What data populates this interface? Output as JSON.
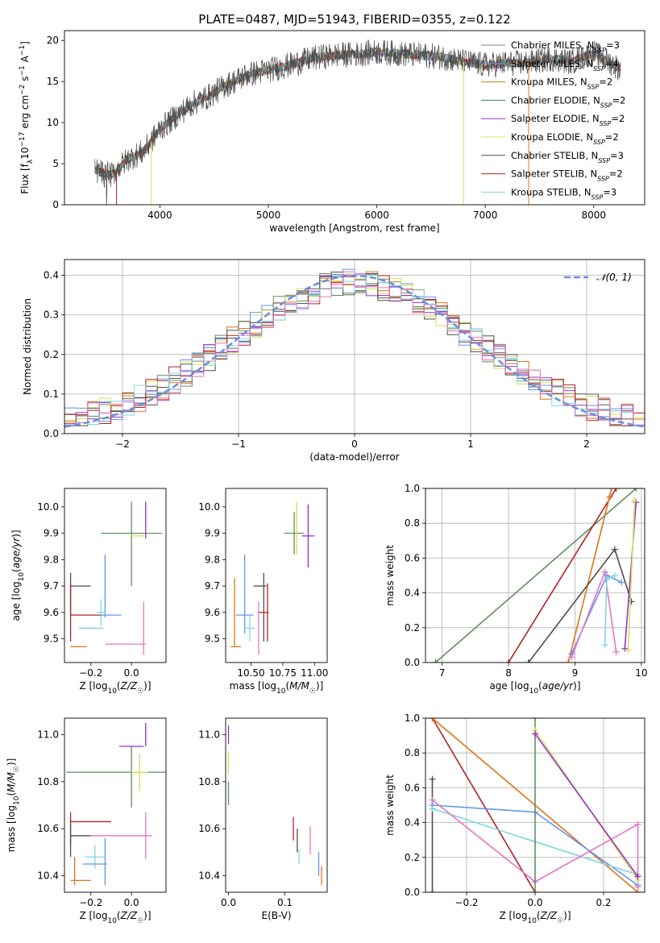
{
  "figure_title": "PLATE=0487, MJD=51943, FIBERID=0355, z=0.122",
  "legend_entries": [
    {
      "label": "Chabrier MILES, N",
      "sub": "SSP",
      "suffix": "=3",
      "color": "#7f7f7f"
    },
    {
      "label": "Salpeter MILES, N",
      "sub": "SSP",
      "suffix": "=4",
      "color": "#6495ed"
    },
    {
      "label": "Kroupa MILES, N",
      "sub": "SSP",
      "suffix": "=2",
      "color": "#b8860b"
    },
    {
      "label": "Chabrier ELODIE, N",
      "sub": "SSP",
      "suffix": "=2",
      "color": "#2e8b57"
    },
    {
      "label": "Salpeter ELODIE, N",
      "sub": "SSP",
      "suffix": "=2",
      "color": "#9932cc"
    },
    {
      "label": "Kroupa ELODIE, N",
      "sub": "SSP",
      "suffix": "=2",
      "color": "#d4e157"
    },
    {
      "label": "Chabrier STELIB, N",
      "sub": "SSP",
      "suffix": "=3",
      "color": "#4d4d4d"
    },
    {
      "label": "Salpeter STELIB, N",
      "sub": "SSP",
      "suffix": "=2",
      "color": "#b22222"
    },
    {
      "label": "Kroupa STELIB, N",
      "sub": "SSP",
      "suffix": "=3",
      "color": "#7fd6e0"
    }
  ],
  "colors": [
    "#4d4d4d",
    "#6495ed",
    "#e0731a",
    "#5f8f5f",
    "#9932cc",
    "#d4e157",
    "#555555",
    "#b22222",
    "#7fd6e0",
    "#e377c2"
  ],
  "chart_data": [
    {
      "id": "spectrum",
      "type": "line",
      "xlabel": "wavelength [Angstrom, rest frame]",
      "ylabel": "Flux [fλ10⁻¹⁷ erg cm⁻² s⁻¹ A⁻¹]",
      "xlim": [
        3120,
        8470
      ],
      "ylim": [
        0,
        21.2
      ],
      "xticks": [
        4000,
        5000,
        6000,
        7000,
        8000
      ],
      "yticks": [
        0,
        5,
        10,
        15,
        20
      ],
      "grid": false,
      "legend": "right",
      "spectrum_nodes": {
        "x": [
          3400,
          3550,
          3700,
          3850,
          4000,
          4150,
          4300,
          4450,
          4600,
          4800,
          5000,
          5200,
          5400,
          5600,
          5800,
          6000,
          6200,
          6400,
          6600,
          6800,
          7000,
          7200,
          7400,
          7600,
          7800,
          8000,
          8250
        ],
        "y": [
          4.2,
          3.6,
          5.5,
          6.5,
          9.2,
          10.8,
          12.3,
          13.2,
          14.5,
          15.8,
          16.4,
          17.0,
          17.8,
          18.2,
          18.3,
          18.6,
          18.4,
          18.2,
          18.0,
          17.4,
          17.0,
          17.2,
          17.3,
          17.8,
          17.4,
          18.5,
          16.5
        ]
      }
    },
    {
      "id": "residuals",
      "type": "histogram",
      "xlabel": "(data-model)/error",
      "ylabel": "Normed distribution",
      "xlim": [
        -2.5,
        2.5
      ],
      "ylim": [
        0,
        0.44
      ],
      "xticks": [
        -2,
        -1,
        0,
        1,
        2
      ],
      "yticks": [
        0.0,
        0.1,
        0.2,
        0.3,
        0.4
      ],
      "grid": true,
      "legend": "top-right",
      "reference": {
        "label": "𝒩(0, 1)",
        "mean": 0,
        "sigma": 1,
        "color": "#6a8fdc"
      }
    },
    {
      "id": "age_vs_Z",
      "type": "scatter",
      "xlabel": "Z [log10(Z/Z☉)]",
      "ylabel": "age  [log10(age/yr)]",
      "xlim": [
        -0.33,
        0.17
      ],
      "ylim": [
        9.41,
        10.07
      ],
      "xticks": [
        -0.2,
        0.0
      ],
      "xticklabels": [
        "−0.2",
        "0.0"
      ],
      "yticks": [
        9.5,
        9.6,
        9.7,
        9.8,
        9.9,
        10.0
      ],
      "points": [
        {
          "x": -0.3,
          "xerr": 0.0,
          "y": 9.67,
          "yerr": 0.08,
          "color": "#4d4d4d"
        },
        {
          "x": -0.13,
          "xerr": 0.0,
          "y": 9.7,
          "yerr": 0.12,
          "color": "#6495ed"
        },
        {
          "x": -0.26,
          "xerr": 0.04,
          "y": 9.47,
          "yerr": 0.0,
          "color": "#e0731a"
        },
        {
          "x": 0.0,
          "xerr": 0.0,
          "y": 9.86,
          "yerr": 0.16,
          "color": "#5f8f5f"
        },
        {
          "x": 0.0,
          "xerr": 0.15,
          "y": 9.9,
          "yerr": 0.0,
          "color": "#5f8f5f"
        },
        {
          "x": 0.07,
          "xerr": 0.0,
          "y": 9.95,
          "yerr": 0.07,
          "color": "#9932cc"
        },
        {
          "x": 0.03,
          "xerr": 0.03,
          "y": 9.89,
          "yerr": 0.0,
          "color": "#d4e157"
        },
        {
          "x": -0.25,
          "xerr": 0.05,
          "y": 9.7,
          "yerr": 0.0,
          "color": "#4d4d4d"
        },
        {
          "x": -0.3,
          "xerr": 0.0,
          "y": 9.6,
          "yerr": 0.11,
          "color": "#b22222"
        },
        {
          "x": -0.22,
          "xerr": 0.08,
          "y": 9.59,
          "yerr": 0.0,
          "color": "#b22222"
        },
        {
          "x": -0.15,
          "xerr": 0.02,
          "y": 9.6,
          "yerr": 0.05,
          "color": "#7fd6e0"
        },
        {
          "x": -0.2,
          "xerr": 0.06,
          "y": 9.54,
          "yerr": 0.0,
          "color": "#7fd6e0"
        },
        {
          "x": -0.1,
          "xerr": 0.05,
          "y": 9.59,
          "yerr": 0.0,
          "color": "#6495ed"
        },
        {
          "x": 0.06,
          "xerr": 0.0,
          "y": 9.54,
          "yerr": 0.1,
          "color": "#e377c2"
        },
        {
          "x": -0.03,
          "xerr": 0.1,
          "y": 9.48,
          "yerr": 0.0,
          "color": "#e377c2"
        }
      ]
    },
    {
      "id": "age_vs_mass",
      "type": "scatter",
      "xlabel": "mass [log10(M/M☉)]",
      "ylabel": "",
      "xlim": [
        10.3,
        11.1
      ],
      "ylim": [
        9.41,
        10.07
      ],
      "xticks": [
        10.5,
        10.75,
        11.0
      ],
      "xticklabels": [
        "10.50",
        "10.75",
        "11.00"
      ],
      "yticks": [
        9.5,
        9.6,
        9.7,
        9.8,
        9.9,
        10.0
      ],
      "points": [
        {
          "x": 10.37,
          "xerr": 0.0,
          "y": 9.6,
          "yerr": 0.13,
          "color": "#e0731a"
        },
        {
          "x": 10.38,
          "xerr": 0.04,
          "y": 9.47,
          "yerr": 0.0,
          "color": "#e0731a"
        },
        {
          "x": 10.45,
          "xerr": 0.0,
          "y": 9.67,
          "yerr": 0.15,
          "color": "#6495ed"
        },
        {
          "x": 10.45,
          "xerr": 0.07,
          "y": 9.59,
          "yerr": 0.0,
          "color": "#6495ed"
        },
        {
          "x": 10.49,
          "xerr": 0.04,
          "y": 9.54,
          "yerr": 0.05,
          "color": "#7fd6e0"
        },
        {
          "x": 10.57,
          "xerr": 0.05,
          "y": 9.7,
          "yerr": 0.0,
          "color": "#4d4d4d"
        },
        {
          "x": 10.6,
          "xerr": 0.0,
          "y": 9.62,
          "yerr": 0.13,
          "color": "#4d4d4d"
        },
        {
          "x": 10.63,
          "xerr": 0.0,
          "y": 9.6,
          "yerr": 0.11,
          "color": "#b22222"
        },
        {
          "x": 10.6,
          "xerr": 0.04,
          "y": 9.6,
          "yerr": 0.0,
          "color": "#b22222"
        },
        {
          "x": 10.56,
          "xerr": 0.0,
          "y": 9.54,
          "yerr": 0.1,
          "color": "#e377c2"
        },
        {
          "x": 10.84,
          "xerr": 0.08,
          "y": 9.9,
          "yerr": 0.08,
          "color": "#5f8f5f"
        },
        {
          "x": 10.86,
          "xerr": 0.0,
          "y": 9.92,
          "yerr": 0.1,
          "color": "#d4e157"
        },
        {
          "x": 10.95,
          "xerr": 0.05,
          "y": 9.89,
          "yerr": 0.12,
          "color": "#9932cc"
        }
      ]
    },
    {
      "id": "massweight_vs_age",
      "type": "line",
      "xlabel": "age  [log10(age/yr)]",
      "ylabel": "mass weight",
      "xlim": [
        6.75,
        10.05
      ],
      "ylim": [
        0,
        1
      ],
      "xticks": [
        7,
        8,
        9,
        10
      ],
      "yticks": [
        0.0,
        0.2,
        0.4,
        0.6,
        0.8,
        1.0
      ],
      "grid": true,
      "series": [
        {
          "color": "#5f8f5f",
          "x": [
            6.9,
            9.92
          ],
          "y": [
            0.0,
            1.0
          ]
        },
        {
          "color": "#b22222",
          "x": [
            8.0,
            9.62
          ],
          "y": [
            0.0,
            1.0
          ]
        },
        {
          "color": "#e0731a",
          "x": [
            8.9,
            9.52,
            9.55
          ],
          "y": [
            0.0,
            0.95,
            1.0
          ]
        },
        {
          "color": "#4d4d4d",
          "x": [
            8.3,
            9.6,
            9.85
          ],
          "y": [
            0.0,
            0.65,
            0.35
          ]
        },
        {
          "color": "#6495ed",
          "x": [
            8.95,
            9.48,
            9.7
          ],
          "y": [
            0.05,
            0.5,
            0.46
          ]
        },
        {
          "color": "#e377c2",
          "x": [
            8.95,
            9.45,
            9.62
          ],
          "y": [
            0.03,
            0.52,
            0.06
          ]
        },
        {
          "color": "#7fd6e0",
          "x": [
            9.45,
            9.48,
            9.6
          ],
          "y": [
            0.1,
            0.48,
            0.5
          ]
        },
        {
          "color": "#9932cc",
          "x": [
            9.75,
            9.92
          ],
          "y": [
            0.08,
            0.92
          ]
        },
        {
          "color": "#d4e157",
          "x": [
            9.8,
            9.9
          ],
          "y": [
            0.07,
            0.93
          ]
        }
      ]
    },
    {
      "id": "mass_vs_Z",
      "type": "scatter",
      "xlabel": "Z [log10(Z/Z☉)]",
      "ylabel": "mass [log10(M/M☉)]",
      "xlim": [
        -0.33,
        0.17
      ],
      "ylim": [
        10.33,
        11.07
      ],
      "xticks": [
        -0.2,
        0.0
      ],
      "xticklabels": [
        "−0.2",
        "0.0"
      ],
      "yticks": [
        10.4,
        10.6,
        10.8,
        11.0
      ],
      "points": [
        {
          "x": 0.0,
          "xerr": 0.0,
          "y": 10.82,
          "yerr": 0.13,
          "color": "#5f8f5f"
        },
        {
          "x": -0.04,
          "xerr": 0.28,
          "y": 10.84,
          "yerr": 0.0,
          "color": "#5f8f5f"
        },
        {
          "x": 0.07,
          "xerr": 0.0,
          "y": 11.0,
          "yerr": 0.05,
          "color": "#9932cc"
        },
        {
          "x": 0.0,
          "xerr": 0.06,
          "y": 10.95,
          "yerr": 0.0,
          "color": "#9932cc"
        },
        {
          "x": 0.04,
          "xerr": 0.04,
          "y": 10.84,
          "yerr": 0.08,
          "color": "#d4e157"
        },
        {
          "x": -0.2,
          "xerr": 0.1,
          "y": 10.63,
          "yerr": 0.0,
          "color": "#b22222"
        },
        {
          "x": -0.3,
          "xerr": 0.0,
          "y": 10.6,
          "yerr": 0.07,
          "color": "#b22222"
        },
        {
          "x": -0.25,
          "xerr": 0.05,
          "y": 10.57,
          "yerr": 0.0,
          "color": "#4d4d4d"
        },
        {
          "x": -0.3,
          "xerr": 0.0,
          "y": 10.55,
          "yerr": 0.07,
          "color": "#4d4d4d"
        },
        {
          "x": -0.05,
          "xerr": 0.15,
          "y": 10.57,
          "yerr": 0.0,
          "color": "#e377c2"
        },
        {
          "x": 0.07,
          "xerr": 0.0,
          "y": 10.57,
          "yerr": 0.1,
          "color": "#e377c2"
        },
        {
          "x": -0.18,
          "xerr": 0.05,
          "y": 10.48,
          "yerr": 0.05,
          "color": "#7fd6e0"
        },
        {
          "x": -0.13,
          "xerr": 0.0,
          "y": 10.46,
          "yerr": 0.1,
          "color": "#6495ed"
        },
        {
          "x": -0.18,
          "xerr": 0.06,
          "y": 10.45,
          "yerr": 0.0,
          "color": "#6495ed"
        },
        {
          "x": -0.28,
          "xerr": 0.0,
          "y": 10.42,
          "yerr": 0.06,
          "color": "#e0731a"
        },
        {
          "x": -0.25,
          "xerr": 0.05,
          "y": 10.38,
          "yerr": 0.0,
          "color": "#e0731a"
        }
      ]
    },
    {
      "id": "mass_vs_EBV",
      "type": "scatter",
      "xlabel": "E(B-V)",
      "ylabel": "",
      "xlim": [
        -0.005,
        0.175
      ],
      "ylim": [
        10.33,
        11.07
      ],
      "xticks": [
        0.0,
        0.1
      ],
      "xticklabels": [
        "0.0",
        "0.1"
      ],
      "yticks": [
        10.4,
        10.6,
        10.8,
        11.0
      ],
      "points": [
        {
          "x": 0.0,
          "xerr": 0.0,
          "y": 11.0,
          "yerr": 0.04,
          "color": "#9932cc"
        },
        {
          "x": 0.0,
          "xerr": 0.0,
          "y": 10.88,
          "yerr": 0.05,
          "color": "#d4e157"
        },
        {
          "x": 0.0,
          "xerr": 0.0,
          "y": 10.75,
          "yerr": 0.05,
          "color": "#5f8f5f"
        },
        {
          "x": 0.115,
          "xerr": 0.0,
          "y": 10.6,
          "yerr": 0.05,
          "color": "#b22222"
        },
        {
          "x": 0.122,
          "xerr": 0.0,
          "y": 10.55,
          "yerr": 0.05,
          "color": "#4d4d4d"
        },
        {
          "x": 0.125,
          "xerr": 0.0,
          "y": 10.48,
          "yerr": 0.03,
          "color": "#7fd6e0"
        },
        {
          "x": 0.145,
          "xerr": 0.0,
          "y": 10.55,
          "yerr": 0.06,
          "color": "#e377c2"
        },
        {
          "x": 0.16,
          "xerr": 0.0,
          "y": 10.45,
          "yerr": 0.05,
          "color": "#6495ed"
        },
        {
          "x": 0.165,
          "xerr": 0.0,
          "y": 10.4,
          "yerr": 0.04,
          "color": "#e0731a"
        }
      ]
    },
    {
      "id": "massweight_vs_Z",
      "type": "line",
      "xlabel": "Z [log10(Z/Z☉)]",
      "ylabel": "mass weight",
      "xlim": [
        -0.32,
        0.32
      ],
      "ylim": [
        0,
        1
      ],
      "xticks": [
        -0.2,
        0.0,
        0.2
      ],
      "xticklabels": [
        "−0.2",
        "0.0",
        "0.2"
      ],
      "yticks": [
        0.0,
        0.2,
        0.4,
        0.6,
        0.8,
        1.0
      ],
      "grid": true,
      "series": [
        {
          "color": "#b22222",
          "x": [
            -0.3,
            0.0
          ],
          "y": [
            1.0,
            0.0
          ]
        },
        {
          "color": "#e0731a",
          "x": [
            -0.3,
            0.3
          ],
          "y": [
            1.0,
            0.0
          ]
        },
        {
          "color": "#4d4d4d",
          "x": [
            -0.3,
            -0.3
          ],
          "y": [
            0.0,
            0.65
          ]
        },
        {
          "color": "#6495ed",
          "x": [
            -0.3,
            0.0,
            0.3
          ],
          "y": [
            0.5,
            0.46,
            0.04
          ]
        },
        {
          "color": "#7fd6e0",
          "x": [
            -0.3,
            0.3
          ],
          "y": [
            0.48,
            0.1
          ]
        },
        {
          "color": "#e377c2",
          "x": [
            -0.3,
            0.0,
            0.3,
            0.3
          ],
          "y": [
            0.53,
            0.06,
            0.39,
            0.03
          ]
        },
        {
          "color": "#5f8f5f",
          "x": [
            0.0,
            0.0
          ],
          "y": [
            0.0,
            1.0
          ]
        },
        {
          "color": "#d4e157",
          "x": [
            0.0,
            0.3
          ],
          "y": [
            0.93,
            0.07
          ]
        },
        {
          "color": "#9932cc",
          "x": [
            0.0,
            0.3
          ],
          "y": [
            0.91,
            0.09
          ]
        }
      ]
    }
  ]
}
